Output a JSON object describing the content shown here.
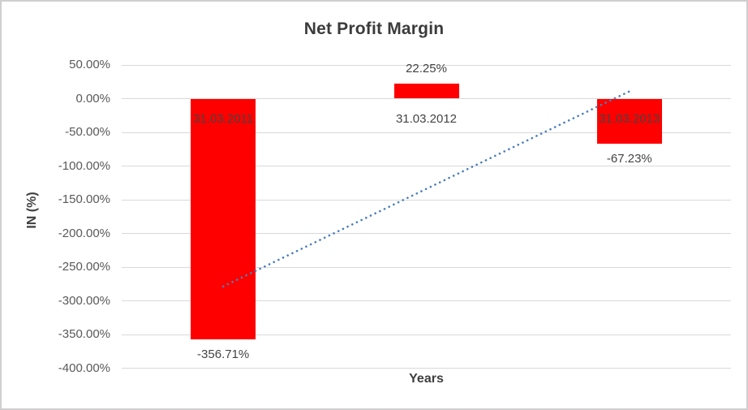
{
  "chart_data": {
    "type": "bar",
    "title": "Net Profit Margin",
    "xlabel": "Years",
    "ylabel": "IN (%)",
    "categories": [
      "31.03.2011",
      "31.03.2012",
      "31.03.2013"
    ],
    "values": [
      -356.71,
      22.25,
      -67.23
    ],
    "data_labels": [
      "-356.71%",
      "22.25%",
      "-67.23%"
    ],
    "ylim": [
      -400,
      50
    ],
    "y_ticks": [
      {
        "value": 50,
        "label": "50.00%"
      },
      {
        "value": 0,
        "label": "0.00%"
      },
      {
        "value": -50,
        "label": "-50.00%"
      },
      {
        "value": -100,
        "label": "-100.00%"
      },
      {
        "value": -150,
        "label": "-150.00%"
      },
      {
        "value": -200,
        "label": "-200.00%"
      },
      {
        "value": -250,
        "label": "-250.00%"
      },
      {
        "value": -300,
        "label": "-300.00%"
      },
      {
        "value": -350,
        "label": "-350.00%"
      },
      {
        "value": -400,
        "label": "-400.00%"
      }
    ],
    "grid": true,
    "legend": "none",
    "bar_color": "#ff0000",
    "grid_color": "#d9d9d9",
    "trendline": {
      "type": "linear",
      "style": "dotted",
      "color": "#4a7ebb"
    }
  }
}
